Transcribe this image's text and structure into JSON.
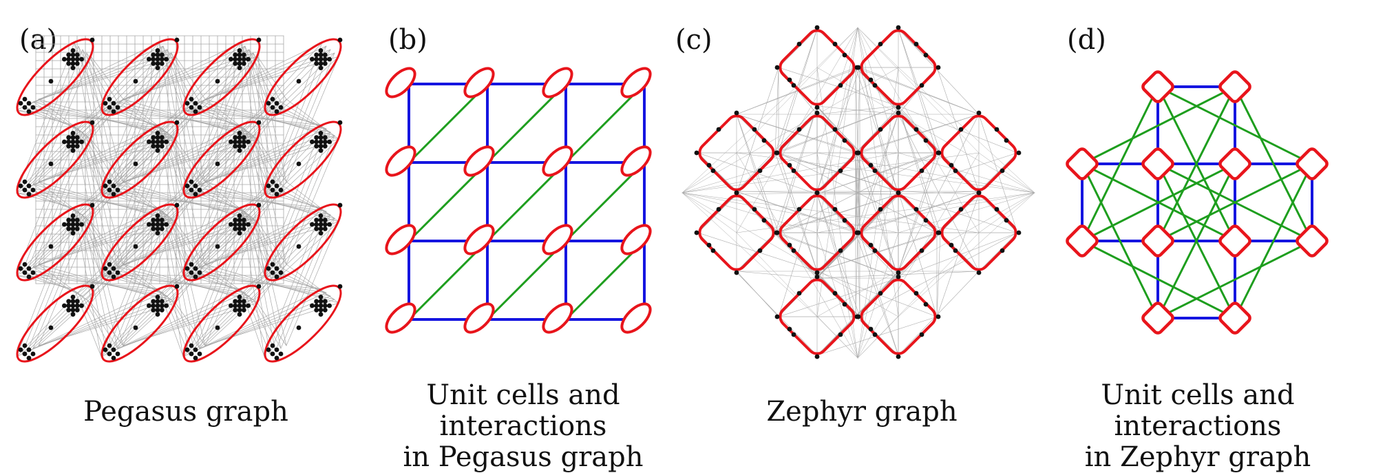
{
  "panels": [
    {
      "id": "a",
      "label": "(a)",
      "caption": [
        "Pegasus graph"
      ]
    },
    {
      "id": "b",
      "label": "(b)",
      "caption": [
        "Unit cells and interactions",
        "in Pegasus graph"
      ]
    },
    {
      "id": "c",
      "label": "(c)",
      "caption": [
        "Zephyr graph"
      ]
    },
    {
      "id": "d",
      "label": "(d)",
      "caption": [
        "Unit cells and interactions",
        "in Zephyr graph"
      ]
    }
  ],
  "colors": {
    "unit_cell": "#e8141b",
    "intra_cell_edge": "#1515e0",
    "inter_cell_edge": "#1e9e1e",
    "coupler": "#a8a8a8",
    "qubit": "#111111"
  }
}
